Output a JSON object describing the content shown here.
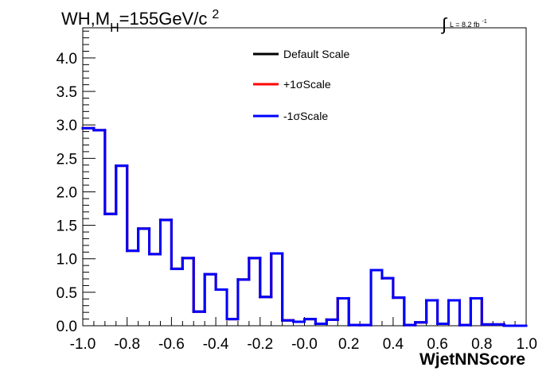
{
  "title_parts": {
    "prefix": "WH,M",
    "subscript": "H",
    "value": "=155GeV/c",
    "superscript": "2"
  },
  "lumi_parts": {
    "integral": "∫",
    "text": "L = 8.2 fb",
    "superscript": "-1"
  },
  "chart_data": {
    "type": "line",
    "xlabel": "WjetNNScore",
    "ylabel": "",
    "xlim": [
      -1.0,
      1.0
    ],
    "ylim": [
      0.0,
      4.45
    ],
    "grid": false,
    "legend_position": "top-center",
    "x_ticks": [
      "-1.0",
      "-0.8",
      "-0.6",
      "-0.4",
      "-0.2",
      "-0.0",
      "0.2",
      "0.4",
      "0.6",
      "0.8",
      "1.0"
    ],
    "x_tick_values": [
      -1.0,
      -0.8,
      -0.6,
      -0.4,
      -0.2,
      0.0,
      0.2,
      0.4,
      0.6,
      0.8,
      1.0
    ],
    "y_ticks": [
      "0.0",
      "0.5",
      "1.0",
      "1.5",
      "2.0",
      "2.5",
      "3.0",
      "3.5",
      "4.0"
    ],
    "y_tick_values": [
      0.0,
      0.5,
      1.0,
      1.5,
      2.0,
      2.5,
      3.0,
      3.5,
      4.0
    ],
    "bin_edges": [
      -1.0,
      -0.95,
      -0.9,
      -0.85,
      -0.8,
      -0.75,
      -0.7,
      -0.65,
      -0.6,
      -0.55,
      -0.5,
      -0.45,
      -0.4,
      -0.35,
      -0.3,
      -0.25,
      -0.2,
      -0.15,
      -0.1,
      -0.05,
      0.0,
      0.05,
      0.1,
      0.15,
      0.2,
      0.25,
      0.3,
      0.35,
      0.4,
      0.45,
      0.5,
      0.55,
      0.6,
      0.65,
      0.7,
      0.75,
      0.8,
      0.85,
      0.9,
      0.95,
      1.0
    ],
    "series": [
      {
        "name": "Default Scale",
        "color": "#000000",
        "values": [
          2.95,
          2.92,
          1.67,
          2.39,
          1.12,
          1.45,
          1.07,
          1.58,
          0.85,
          1.01,
          0.21,
          0.77,
          0.54,
          0.1,
          0.69,
          1.01,
          0.43,
          1.08,
          0.08,
          0.06,
          0.1,
          0.03,
          0.09,
          0.41,
          0.01,
          0.01,
          0.83,
          0.71,
          0.42,
          0.01,
          0.05,
          0.38,
          0.03,
          0.38,
          0.01,
          0.41,
          0.02,
          0.02,
          0.0,
          0.0
        ]
      },
      {
        "name": "+1σScale",
        "color": "#ff0000",
        "values": [
          2.95,
          2.92,
          1.67,
          2.39,
          1.12,
          1.45,
          1.07,
          1.58,
          0.85,
          1.01,
          0.21,
          0.77,
          0.54,
          0.1,
          0.69,
          1.01,
          0.43,
          1.08,
          0.08,
          0.06,
          0.1,
          0.03,
          0.09,
          0.41,
          0.01,
          0.01,
          0.83,
          0.71,
          0.42,
          0.01,
          0.05,
          0.38,
          0.03,
          0.38,
          0.01,
          0.41,
          0.02,
          0.02,
          0.0,
          0.0
        ]
      },
      {
        "name": "-1σScale",
        "color": "#0000ff",
        "values": [
          2.95,
          2.92,
          1.67,
          2.39,
          1.12,
          1.45,
          1.07,
          1.58,
          0.85,
          1.01,
          0.21,
          0.77,
          0.54,
          0.1,
          0.69,
          1.01,
          0.43,
          1.08,
          0.08,
          0.06,
          0.1,
          0.03,
          0.09,
          0.41,
          0.01,
          0.01,
          0.83,
          0.71,
          0.42,
          0.01,
          0.05,
          0.38,
          0.03,
          0.38,
          0.01,
          0.41,
          0.02,
          0.02,
          0.0,
          0.0
        ]
      }
    ]
  }
}
